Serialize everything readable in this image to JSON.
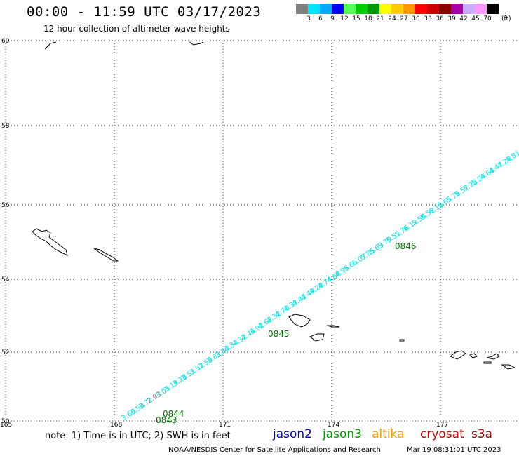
{
  "header": {
    "title": "00:00 - 11:59 UTC 03/17/2023",
    "subtitle": "12 hour collection of altimeter wave heights"
  },
  "legend": {
    "colors": [
      "#808080",
      "#00e5ff",
      "#00aaff",
      "#0000ff",
      "#55ff55",
      "#00cc00",
      "#009900",
      "#ffff00",
      "#ffcc00",
      "#ff9900",
      "#ff0000",
      "#cc0000",
      "#880000",
      "#aa00aa",
      "#ccaaff",
      "#ff99ff",
      "#000000"
    ],
    "labels": [
      "3",
      "6",
      "9",
      "12",
      "15",
      "18",
      "21",
      "24",
      "27",
      "30",
      "33",
      "36",
      "39",
      "42",
      "45",
      "70"
    ],
    "unit": "(ft)"
  },
  "map": {
    "lat_labels": [
      "60",
      "58",
      "56",
      "54",
      "52",
      "50"
    ],
    "lon_labels": [
      "165",
      "168",
      "171",
      "174",
      "177"
    ],
    "pass_times": [
      {
        "text": "0846",
        "color": "#007700"
      },
      {
        "text": "0845",
        "color": "#007700"
      },
      {
        "text": "0844",
        "color": "#007700"
      },
      {
        "text": "0843",
        "color": "#007700"
      }
    ],
    "track_values": [
      "4.81",
      "4.28",
      "4.47",
      "4.64",
      "5.24",
      "5.28",
      "5.57",
      "5.76",
      "5.65",
      "6.18",
      "5.52",
      "5.54",
      "6.12",
      "5.76",
      "5.52",
      "5.70",
      "5.63",
      "5.85",
      "6.07",
      "5.65",
      "4.95",
      "4.68",
      "4.74",
      "4.28",
      "4.49",
      "4.42",
      "4.33",
      "4.70",
      "4.32",
      "4.62",
      "3.92",
      "4.44",
      "4.32",
      "4.30",
      "3.83",
      "3.81",
      "3.50",
      "3.52",
      "3.51",
      "3.28",
      "3.19",
      "3.05",
      "2.93",
      "3.71",
      "3.50",
      "3.60"
    ],
    "outlier": "2.93"
  },
  "footer": {
    "note": "note: 1) Time is in UTC; 2) SWH is in feet",
    "satellites": [
      {
        "name": "jason2",
        "color": "#0000cc"
      },
      {
        "name": "jason3",
        "color": "#009900"
      },
      {
        "name": "altika",
        "color": "#ff9900"
      },
      {
        "name": "cryosat",
        "color": "#cc0000"
      },
      {
        "name": "s3a",
        "color": "#990000"
      }
    ],
    "credit": "NOAA/NESDIS Center for Satellite Applications and Research",
    "datestamp": "Mar 19 08:31:01 UTC 2023"
  }
}
